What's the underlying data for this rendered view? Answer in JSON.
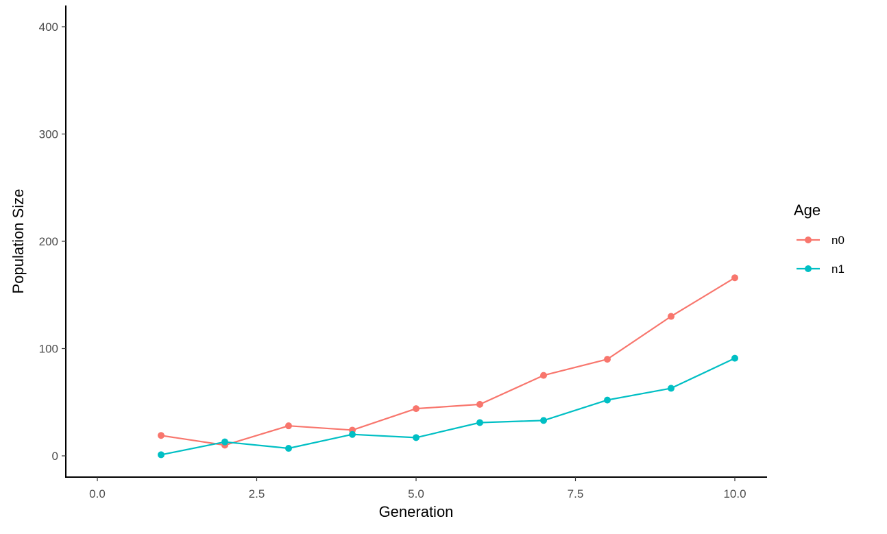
{
  "chart_data": {
    "type": "line",
    "xlabel": "Generation",
    "ylabel": "Population Size",
    "xlim": [
      0,
      10
    ],
    "ylim": [
      0,
      400
    ],
    "x_ticks": [
      0,
      2.5,
      5,
      7.5,
      10
    ],
    "x_tick_labels": [
      "0.0",
      "2.5",
      "5.0",
      "7.5",
      "10.0"
    ],
    "y_ticks": [
      0,
      100,
      200,
      300,
      400
    ],
    "y_tick_labels": [
      "0",
      "100",
      "200",
      "300",
      "400"
    ],
    "grid": false,
    "legend": {
      "title": "Age",
      "position": "right"
    },
    "x": [
      1,
      2,
      3,
      4,
      5,
      6,
      7,
      8,
      9,
      10
    ],
    "series": [
      {
        "name": "n0",
        "color": "#F8766D",
        "values": [
          19,
          10,
          28,
          24,
          44,
          48,
          75,
          90,
          130,
          166
        ]
      },
      {
        "name": "n1",
        "color": "#00BFC4",
        "values": [
          1,
          13,
          7,
          20,
          17,
          31,
          33,
          52,
          63,
          91
        ]
      }
    ]
  }
}
